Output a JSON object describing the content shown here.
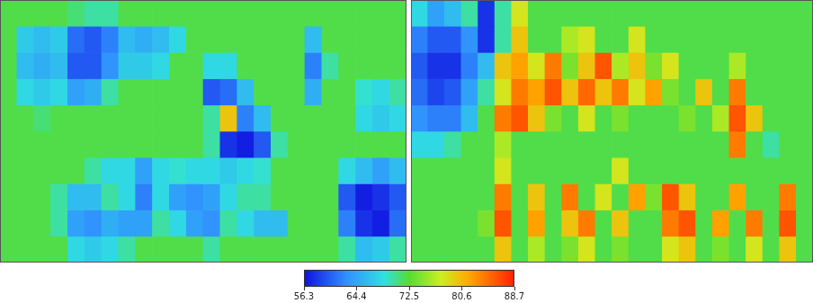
{
  "chart_data": [
    {
      "type": "heatmap",
      "tick_labels": false,
      "colorbar": {
        "range": [
          56.3,
          88.7
        ],
        "ticks": [
          56.3,
          64.4,
          72.5,
          80.6,
          88.7
        ]
      },
      "cells": [
        [
          72,
          72,
          72,
          72,
          71,
          70,
          70,
          72,
          72,
          72,
          72,
          72,
          72,
          72,
          72,
          72,
          72,
          72,
          72,
          72,
          72,
          72,
          72,
          72
        ],
        [
          72,
          67,
          66,
          67,
          61,
          60,
          62,
          66,
          65,
          66,
          68,
          72,
          72,
          72,
          72,
          72,
          72,
          72,
          66,
          72,
          72,
          72,
          72,
          72
        ],
        [
          72,
          66,
          65,
          66,
          60,
          60,
          63,
          67,
          67,
          68,
          72,
          72,
          68,
          68,
          72,
          72,
          72,
          72,
          62,
          70,
          72,
          72,
          72,
          72
        ],
        [
          72,
          68,
          67,
          68,
          64,
          65,
          70,
          72,
          72,
          72,
          72,
          72,
          60,
          61,
          66,
          72,
          72,
          72,
          65,
          72,
          72,
          69,
          68,
          70
        ],
        [
          72,
          72,
          71,
          72,
          72,
          72,
          72,
          72,
          72,
          72,
          72,
          72,
          70,
          80,
          62,
          66,
          72,
          72,
          72,
          72,
          72,
          68,
          67,
          68
        ],
        [
          72,
          72,
          72,
          72,
          72,
          72,
          72,
          72,
          72,
          72,
          72,
          72,
          70,
          58,
          57,
          60,
          70,
          72,
          72,
          72,
          72,
          72,
          72,
          72
        ],
        [
          72,
          72,
          72,
          72,
          72,
          70,
          68,
          68,
          64,
          68,
          69,
          68,
          68,
          67,
          68,
          69,
          72,
          72,
          72,
          72,
          68,
          66,
          64,
          66
        ],
        [
          72,
          72,
          72,
          70,
          66,
          66,
          70,
          68,
          62,
          68,
          64,
          63,
          64,
          68,
          70,
          70,
          72,
          72,
          72,
          72,
          60,
          57,
          58,
          60
        ],
        [
          72,
          72,
          72,
          70,
          64,
          63,
          65,
          64,
          64,
          70,
          68,
          64,
          63,
          70,
          68,
          66,
          66,
          72,
          72,
          72,
          62,
          58,
          57,
          61
        ],
        [
          72,
          72,
          72,
          72,
          68,
          67,
          68,
          70,
          72,
          72,
          72,
          72,
          70,
          72,
          72,
          72,
          72,
          72,
          72,
          72,
          70,
          66,
          67,
          70
        ]
      ]
    },
    {
      "type": "heatmap",
      "tick_labels": false,
      "colorbar": {
        "range": [
          56.3,
          88.7
        ],
        "ticks": [
          56.3,
          64.4,
          72.5,
          80.6,
          88.7
        ]
      },
      "cells": [
        [
          68,
          64,
          66,
          70,
          58,
          70,
          78,
          72,
          72,
          72,
          72,
          72,
          72,
          72,
          72,
          72,
          72,
          72,
          72,
          72,
          72,
          72,
          72,
          72
        ],
        [
          62,
          60,
          60,
          63,
          58,
          70,
          80,
          72,
          72,
          76,
          78,
          72,
          72,
          78,
          72,
          72,
          72,
          72,
          72,
          72,
          72,
          72,
          72,
          72
        ],
        [
          60,
          58,
          58,
          62,
          66,
          80,
          82,
          78,
          84,
          74,
          80,
          86,
          76,
          80,
          74,
          78,
          72,
          72,
          72,
          76,
          72,
          72,
          72,
          72
        ],
        [
          61,
          59,
          60,
          64,
          70,
          78,
          84,
          82,
          86,
          80,
          85,
          80,
          84,
          78,
          82,
          74,
          72,
          80,
          72,
          84,
          72,
          72,
          72,
          72
        ],
        [
          63,
          62,
          62,
          66,
          72,
          84,
          86,
          80,
          74,
          72,
          78,
          72,
          74,
          72,
          72,
          72,
          74,
          72,
          76,
          86,
          80,
          72,
          72,
          72
        ],
        [
          68,
          68,
          70,
          72,
          72,
          76,
          72,
          72,
          72,
          72,
          72,
          72,
          72,
          72,
          72,
          72,
          72,
          72,
          72,
          84,
          72,
          70,
          72,
          72
        ],
        [
          72,
          72,
          72,
          72,
          72,
          78,
          72,
          72,
          72,
          72,
          72,
          72,
          78,
          72,
          72,
          72,
          72,
          72,
          72,
          72,
          72,
          72,
          72,
          72
        ],
        [
          72,
          72,
          72,
          72,
          72,
          84,
          72,
          80,
          72,
          84,
          72,
          78,
          72,
          82,
          74,
          86,
          80,
          72,
          72,
          82,
          72,
          72,
          84,
          72
        ],
        [
          72,
          72,
          72,
          72,
          74,
          86,
          72,
          82,
          72,
          80,
          84,
          72,
          80,
          72,
          72,
          84,
          86,
          72,
          82,
          72,
          84,
          72,
          86,
          72
        ],
        [
          72,
          72,
          72,
          72,
          72,
          80,
          72,
          76,
          72,
          74,
          78,
          72,
          74,
          72,
          72,
          78,
          80,
          72,
          74,
          72,
          78,
          72,
          80,
          72
        ]
      ]
    }
  ]
}
